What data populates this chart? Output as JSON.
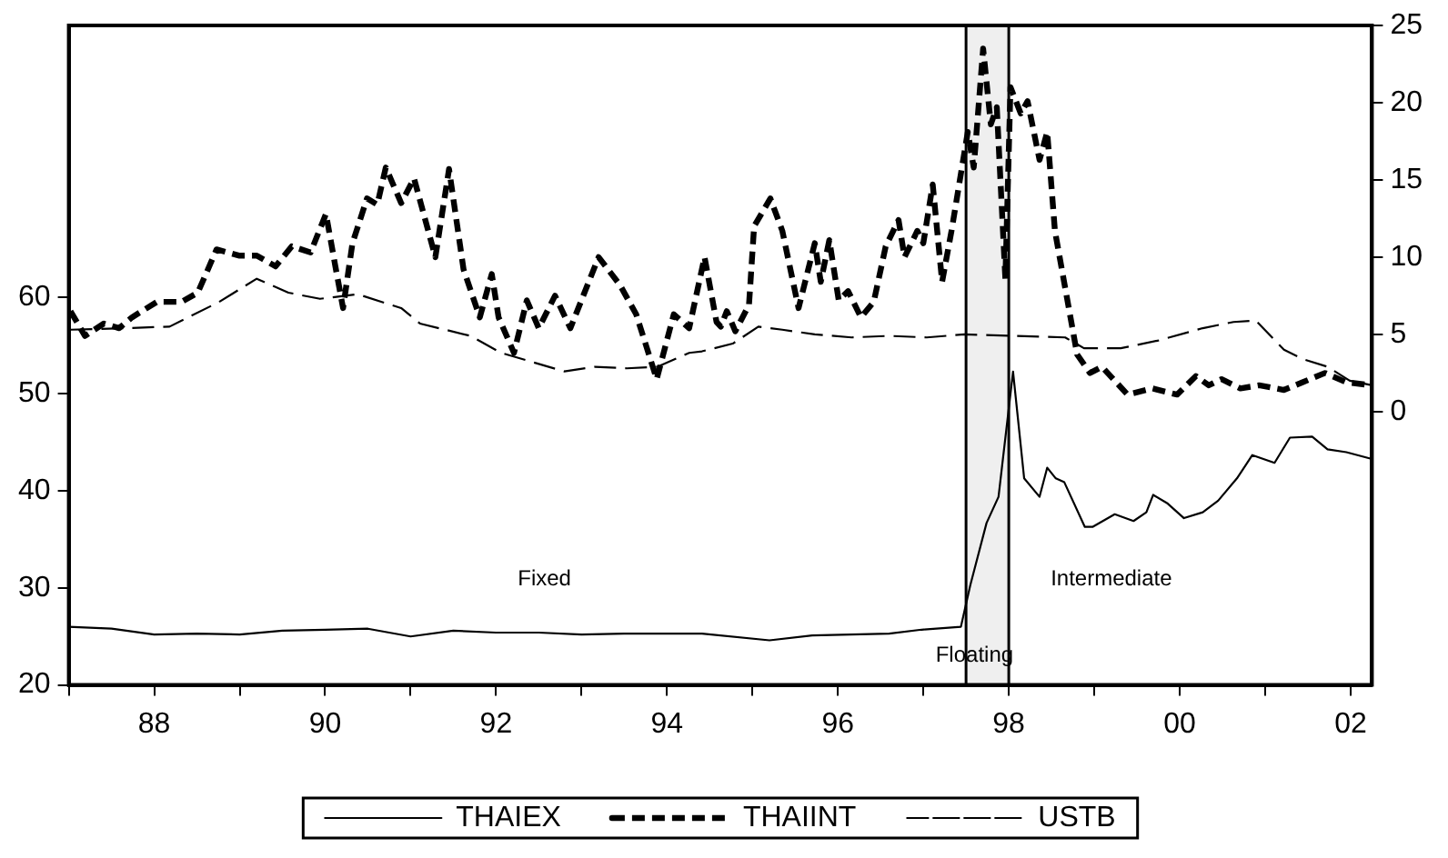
{
  "chart_data": {
    "type": "line",
    "legend": "bottom",
    "grid": false,
    "xlim": [
      1987,
      2002.25
    ],
    "xticks": [
      {
        "value": 1987,
        "label": null
      },
      {
        "value": 1988,
        "label": "88"
      },
      {
        "value": 1989,
        "label": null
      },
      {
        "value": 1990,
        "label": "90"
      },
      {
        "value": 1991,
        "label": null
      },
      {
        "value": 1992,
        "label": "92"
      },
      {
        "value": 1993,
        "label": null
      },
      {
        "value": 1994,
        "label": "94"
      },
      {
        "value": 1995,
        "label": null
      },
      {
        "value": 1996,
        "label": "96"
      },
      {
        "value": 1997,
        "label": null
      },
      {
        "value": 1998,
        "label": "98"
      },
      {
        "value": 1999,
        "label": null
      },
      {
        "value": 2000,
        "label": "00"
      },
      {
        "value": 2001,
        "label": null
      },
      {
        "value": 2002,
        "label": "02"
      }
    ],
    "ylim": [
      20,
      88
    ],
    "yticks": [
      20,
      30,
      40,
      50,
      60
    ],
    "y2lim": [
      -17.7,
      25
    ],
    "y2ticks": [
      0,
      5,
      10,
      15,
      20,
      25
    ],
    "bands": [
      {
        "axis": "x",
        "from": 1997.5,
        "to": 1998.0,
        "color": "#efefef"
      }
    ],
    "ref_lines": [
      {
        "axis": "x",
        "value": 1997.5,
        "color": "#000000"
      },
      {
        "axis": "x",
        "value": 1998.0,
        "color": "#000000"
      }
    ],
    "annotations": [
      "Fixed",
      "Floating",
      "Intermediate"
    ],
    "series": [
      {
        "name": "THAIEX",
        "color": "#000000",
        "line_style": "solid",
        "axis": "y",
        "x": [
          1987.0,
          1987.5,
          1988.0,
          1988.5,
          1989.0,
          1989.5,
          1990.0,
          1990.5,
          1991.0,
          1991.5,
          1992.0,
          1992.5,
          1993.0,
          1993.5,
          1994.0,
          1994.41,
          1995.2,
          1995.7,
          1996.6,
          1996.98,
          1997.44,
          1997.55,
          1997.74,
          1997.88,
          1998.05,
          1998.18,
          1998.36,
          1998.45,
          1998.55,
          1998.65,
          1998.89,
          1998.98,
          1999.24,
          1999.46,
          1999.61,
          1999.69,
          1999.86,
          2000.05,
          2000.27,
          2000.45,
          2000.67,
          2000.85,
          2001.11,
          2001.29,
          2001.55,
          2001.73,
          2001.95,
          2002.25
        ],
        "values": [
          26.0,
          25.8,
          25.2,
          25.3,
          25.2,
          25.6,
          25.7,
          25.8,
          25.0,
          25.6,
          25.4,
          25.4,
          25.2,
          25.3,
          25.3,
          25.3,
          24.6,
          25.1,
          25.3,
          25.7,
          26.0,
          30.3,
          36.7,
          39.4,
          52.3,
          41.3,
          39.4,
          42.4,
          41.3,
          40.9,
          36.3,
          36.3,
          37.6,
          36.9,
          37.8,
          39.6,
          38.7,
          37.2,
          37.8,
          39.0,
          41.3,
          43.7,
          42.9,
          45.5,
          45.6,
          44.3,
          44.0,
          43.3
        ]
      },
      {
        "name": "THAIINT",
        "color": "#000000",
        "line_style": "dashed",
        "axis": "y2",
        "x": [
          1987.02,
          1987.19,
          1987.41,
          1987.59,
          1987.74,
          1988.03,
          1988.32,
          1988.51,
          1988.73,
          1988.99,
          1989.2,
          1989.42,
          1989.61,
          1989.83,
          1990.01,
          1990.12,
          1990.21,
          1990.32,
          1990.49,
          1990.61,
          1990.71,
          1990.89,
          1991.04,
          1991.29,
          1991.45,
          1991.62,
          1991.81,
          1991.95,
          1992.03,
          1992.21,
          1992.36,
          1992.5,
          1992.69,
          1992.87,
          1993.2,
          1993.45,
          1993.64,
          1993.88,
          1994.08,
          1994.26,
          1994.44,
          1994.58,
          1994.63,
          1994.7,
          1994.8,
          1994.96,
          1995.02,
          1995.21,
          1995.35,
          1995.54,
          1995.73,
          1995.8,
          1995.9,
          1996.01,
          1996.12,
          1996.27,
          1996.42,
          1996.56,
          1996.71,
          1996.78,
          1996.93,
          1997.0,
          1997.11,
          1997.22,
          1997.33,
          1997.52,
          1997.59,
          1997.7,
          1997.79,
          1997.86,
          1997.96,
          1998.02,
          1998.14,
          1998.22,
          1998.36,
          1998.45,
          1998.54,
          1998.8,
          1998.95,
          1999.09,
          1999.39,
          1999.68,
          1999.97,
          2000.19,
          2000.34,
          2000.49,
          2000.71,
          2000.93,
          2001.22,
          2001.44,
          2001.7,
          2001.95,
          2002.25
        ],
        "values": [
          6.5,
          4.9,
          5.7,
          5.4,
          6.1,
          7.1,
          7.1,
          7.7,
          10.5,
          10.1,
          10.1,
          9.4,
          10.7,
          10.3,
          12.8,
          9.4,
          6.7,
          10.9,
          13.8,
          13.4,
          15.8,
          13.5,
          15.1,
          10.0,
          15.7,
          9.2,
          6.1,
          8.9,
          6.1,
          3.8,
          7.2,
          5.4,
          7.5,
          5.4,
          10.0,
          8.2,
          6.3,
          2.1,
          6.3,
          5.4,
          10.0,
          5.8,
          5.5,
          6.5,
          5.2,
          6.9,
          12.0,
          13.8,
          11.7,
          6.7,
          10.9,
          8.4,
          11.1,
          7.2,
          7.8,
          6.1,
          7.1,
          10.7,
          12.4,
          10.0,
          11.7,
          10.9,
          14.7,
          8.4,
          11.7,
          18.1,
          15.8,
          23.5,
          18.6,
          19.7,
          8.6,
          21.0,
          19.3,
          20.1,
          16.3,
          18.1,
          11.7,
          3.7,
          2.5,
          2.9,
          1.1,
          1.5,
          1.1,
          2.3,
          1.7,
          2.1,
          1.5,
          1.7,
          1.4,
          1.9,
          2.5,
          1.9,
          1.7
        ]
      },
      {
        "name": "USTB",
        "color": "#000000",
        "line_style": "dashed",
        "axis": "y2",
        "x": [
          1987.02,
          1987.67,
          1988.18,
          1988.76,
          1989.2,
          1989.57,
          1989.94,
          1990.38,
          1990.89,
          1991.11,
          1991.7,
          1992.06,
          1992.43,
          1992.8,
          1993.16,
          1993.53,
          1993.89,
          1994.26,
          1994.41,
          1994.77,
          1995.07,
          1995.35,
          1995.73,
          1996.16,
          1996.6,
          1997.04,
          1997.48,
          1998.07,
          1998.66,
          1998.88,
          1999.31,
          1999.75,
          2000.27,
          2000.63,
          2000.89,
          2001.22,
          2001.44,
          2001.73,
          2001.99,
          2002.25
        ],
        "values": [
          5.3,
          5.4,
          5.5,
          7.1,
          8.6,
          7.7,
          7.3,
          7.6,
          6.7,
          5.7,
          4.9,
          3.8,
          3.2,
          2.6,
          2.9,
          2.8,
          2.9,
          3.8,
          3.9,
          4.4,
          5.5,
          5.3,
          5.0,
          4.8,
          4.9,
          4.8,
          5.0,
          4.9,
          4.8,
          4.1,
          4.1,
          4.6,
          5.4,
          5.8,
          5.9,
          4.0,
          3.4,
          2.9,
          2.0,
          1.7
        ]
      }
    ]
  }
}
